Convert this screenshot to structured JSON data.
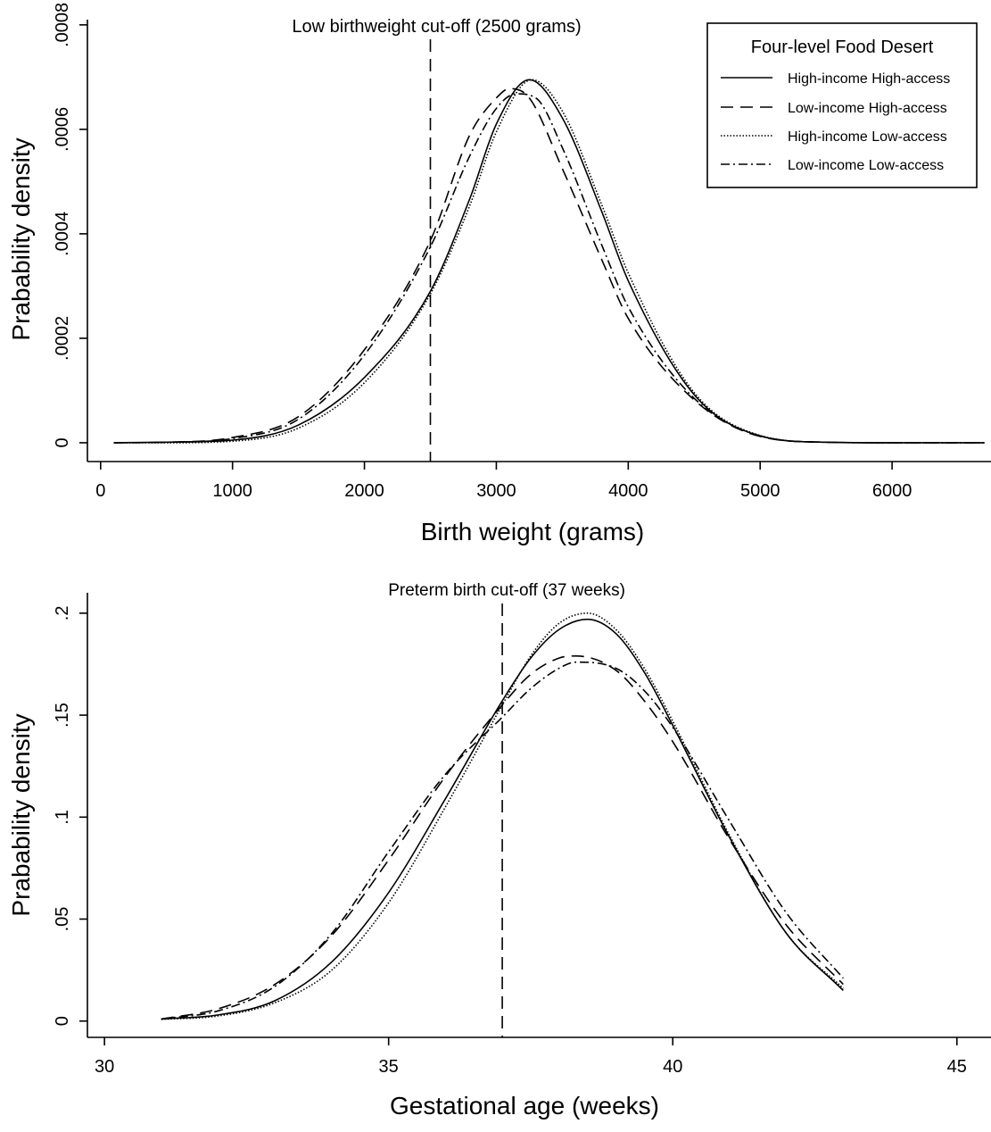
{
  "chart_data": [
    {
      "type": "line",
      "xlabel": "Birth weight (grams)",
      "ylabel": "Prabability density",
      "xlim": [
        -100,
        6750
      ],
      "ylim": [
        -3.6e-05,
        0.00081
      ],
      "x_ticks": [
        0,
        1000,
        2000,
        3000,
        4000,
        5000,
        6000
      ],
      "x_tick_labels": [
        "0",
        "1000",
        "2000",
        "3000",
        "4000",
        "5000",
        "6000"
      ],
      "y_ticks": [
        0,
        0.0002,
        0.0004,
        0.0006,
        0.0008
      ],
      "y_tick_labels": [
        "0",
        ".0002",
        ".0004",
        ".0006",
        ".0008"
      ],
      "grid": false,
      "cutoff": {
        "x": 2500,
        "label": "Low birthweight cut-off (2500 grams)"
      },
      "legend": {
        "title": "Four-level Food Desert",
        "placement": "top-right",
        "entries": [
          "High-income High-access",
          "Low-income High-access",
          "High-income Low-access",
          "Low-income Low-access"
        ]
      },
      "series": [
        {
          "name": "High-income High-access",
          "style": "solid",
          "x": [
            100,
            500,
            1000,
            1500,
            2000,
            2500,
            2800,
            3000,
            3250,
            3500,
            3800,
            4000,
            4500,
            5000,
            5500,
            6000,
            6700
          ],
          "y": [
            0,
            1e-06,
            5e-06,
            3.4e-05,
            0.000125,
            0.00029,
            0.000468,
            0.00061,
            0.000695,
            0.000622,
            0.000442,
            0.00031,
            9.2e-05,
            1.3e-05,
            1e-06,
            0,
            0
          ]
        },
        {
          "name": "Low-income High-access",
          "style": "dashed",
          "x": [
            100,
            500,
            1000,
            1500,
            2000,
            2500,
            2800,
            3000,
            3100,
            3250,
            3500,
            3800,
            4000,
            4500,
            5000,
            5500,
            6000,
            6700
          ],
          "y": [
            0,
            1e-06,
            1e-05,
            5e-05,
            0.000178,
            0.000387,
            0.00059,
            0.00066,
            0.000678,
            0.00066,
            0.000525,
            0.00035,
            0.000238,
            8.2e-05,
            1.2e-05,
            1e-06,
            0,
            0
          ]
        },
        {
          "name": "High-income Low-access",
          "style": "dotted",
          "x": [
            100,
            500,
            1000,
            1500,
            2000,
            2500,
            2800,
            3000,
            3270,
            3500,
            3800,
            4000,
            4500,
            5000,
            5500,
            6000,
            6700
          ],
          "y": [
            0,
            0,
            3e-06,
            2.8e-05,
            0.000115,
            0.000285,
            0.000455,
            0.000595,
            0.000695,
            0.000635,
            0.000455,
            0.000325,
            9.6e-05,
            1.4e-05,
            1e-06,
            0,
            0
          ]
        },
        {
          "name": "Low-income Low-access",
          "style": "dashdot",
          "x": [
            100,
            500,
            1000,
            1500,
            2000,
            2500,
            2800,
            3000,
            3150,
            3300,
            3500,
            3800,
            4000,
            4500,
            5000,
            5500,
            6000,
            6700
          ],
          "y": [
            0,
            1e-06,
            8e-06,
            4.5e-05,
            0.000168,
            0.000375,
            0.00055,
            0.00064,
            0.000668,
            0.00066,
            0.000565,
            0.000378,
            0.00026,
            8.5e-05,
            1.3e-05,
            1e-06,
            0,
            0
          ]
        }
      ]
    },
    {
      "type": "line",
      "xlabel": "Gestational age (weeks)",
      "ylabel": "Prabability density",
      "xlim": [
        29.7,
        45.6
      ],
      "ylim": [
        -0.008,
        0.21
      ],
      "x_ticks": [
        30,
        35,
        40,
        45
      ],
      "x_tick_labels": [
        "30",
        "35",
        "40",
        "45"
      ],
      "y_ticks": [
        0,
        0.05,
        0.1,
        0.15,
        0.2
      ],
      "y_tick_labels": [
        "0",
        ".05",
        ".1",
        ".15",
        ".2"
      ],
      "grid": false,
      "cutoff": {
        "x": 37,
        "label": "Preterm birth cut-off (37 weeks)"
      },
      "series": [
        {
          "name": "High-income High-access",
          "style": "solid",
          "x": [
            31,
            32,
            33,
            34,
            35,
            36,
            37,
            37.5,
            38,
            38.5,
            39,
            39.5,
            40,
            41,
            42,
            43
          ],
          "y": [
            0.001,
            0.003,
            0.01,
            0.029,
            0.063,
            0.109,
            0.157,
            0.178,
            0.192,
            0.197,
            0.19,
            0.171,
            0.145,
            0.09,
            0.043,
            0.015
          ]
        },
        {
          "name": "Low-income High-access",
          "style": "dashed",
          "x": [
            31,
            32,
            33,
            34,
            35,
            36,
            37,
            37.5,
            38,
            38.3,
            39,
            39.5,
            40,
            41,
            42,
            43
          ],
          "y": [
            0.001,
            0.006,
            0.018,
            0.042,
            0.079,
            0.12,
            0.155,
            0.17,
            0.178,
            0.179,
            0.172,
            0.157,
            0.137,
            0.089,
            0.047,
            0.018
          ]
        },
        {
          "name": "High-income Low-access",
          "style": "dotted",
          "x": [
            31,
            32,
            33,
            34,
            35,
            36,
            37,
            37.5,
            38,
            38.5,
            39,
            39.5,
            40,
            41,
            42,
            43
          ],
          "y": [
            0.0008,
            0.0025,
            0.009,
            0.025,
            0.058,
            0.105,
            0.155,
            0.179,
            0.195,
            0.2,
            0.192,
            0.173,
            0.147,
            0.091,
            0.043,
            0.016
          ]
        },
        {
          "name": "Low-income Low-access",
          "style": "dashdot",
          "x": [
            31,
            32,
            33,
            34,
            35,
            36,
            37,
            37.5,
            38,
            38.3,
            39,
            39.5,
            40,
            41,
            42,
            43
          ],
          "y": [
            0.001,
            0.005,
            0.017,
            0.043,
            0.083,
            0.121,
            0.149,
            0.163,
            0.173,
            0.176,
            0.173,
            0.162,
            0.144,
            0.098,
            0.053,
            0.021
          ]
        }
      ]
    }
  ]
}
